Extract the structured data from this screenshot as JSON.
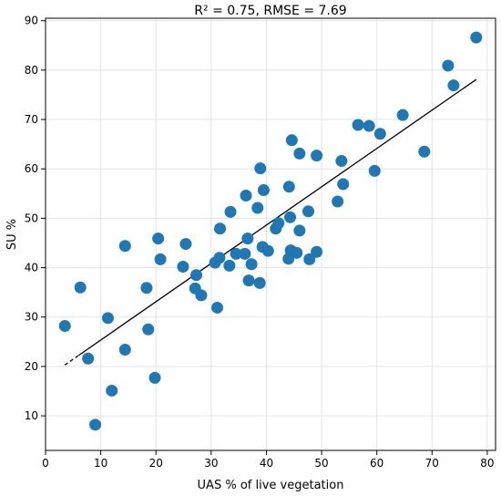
{
  "chart_data": {
    "type": "scatter",
    "title": "R² = 0.75, RMSE = 7.69",
    "xlabel": "UAS % of live vegetation",
    "ylabel": "SU %",
    "xlim": [
      0,
      81.5
    ],
    "ylim": [
      3,
      90.5
    ],
    "xticks": [
      0,
      10,
      20,
      30,
      40,
      50,
      60,
      70,
      80
    ],
    "yticks": [
      10,
      20,
      30,
      40,
      50,
      60,
      70,
      80,
      90
    ],
    "grid": true,
    "point_color": "#1f77b4",
    "line_color": "#000000",
    "points": [
      {
        "x": 3.5,
        "y": 28.2
      },
      {
        "x": 6.3,
        "y": 36.0
      },
      {
        "x": 7.7,
        "y": 21.6
      },
      {
        "x": 9.0,
        "y": 8.2
      },
      {
        "x": 11.3,
        "y": 29.8
      },
      {
        "x": 12.0,
        "y": 15.1
      },
      {
        "x": 14.4,
        "y": 44.4
      },
      {
        "x": 14.4,
        "y": 23.4
      },
      {
        "x": 18.3,
        "y": 35.9
      },
      {
        "x": 18.6,
        "y": 27.5
      },
      {
        "x": 19.8,
        "y": 17.7
      },
      {
        "x": 20.4,
        "y": 45.9
      },
      {
        "x": 20.8,
        "y": 41.7
      },
      {
        "x": 24.9,
        "y": 40.2
      },
      {
        "x": 25.4,
        "y": 44.8
      },
      {
        "x": 27.1,
        "y": 35.8
      },
      {
        "x": 27.3,
        "y": 38.5
      },
      {
        "x": 28.2,
        "y": 34.4
      },
      {
        "x": 30.7,
        "y": 41.0
      },
      {
        "x": 31.1,
        "y": 31.9
      },
      {
        "x": 31.5,
        "y": 42.0
      },
      {
        "x": 31.6,
        "y": 47.9
      },
      {
        "x": 33.3,
        "y": 40.4
      },
      {
        "x": 33.5,
        "y": 51.3
      },
      {
        "x": 34.5,
        "y": 42.8
      },
      {
        "x": 36.1,
        "y": 42.8
      },
      {
        "x": 36.3,
        "y": 54.6
      },
      {
        "x": 36.6,
        "y": 45.9
      },
      {
        "x": 36.8,
        "y": 37.4
      },
      {
        "x": 37.3,
        "y": 40.7
      },
      {
        "x": 38.4,
        "y": 52.1
      },
      {
        "x": 38.8,
        "y": 36.9
      },
      {
        "x": 38.9,
        "y": 60.1
      },
      {
        "x": 39.3,
        "y": 44.2
      },
      {
        "x": 39.5,
        "y": 55.7
      },
      {
        "x": 40.3,
        "y": 43.4
      },
      {
        "x": 41.7,
        "y": 47.9
      },
      {
        "x": 42.2,
        "y": 49.0
      },
      {
        "x": 44.0,
        "y": 41.8
      },
      {
        "x": 44.1,
        "y": 56.4
      },
      {
        "x": 44.3,
        "y": 50.2
      },
      {
        "x": 44.4,
        "y": 43.5
      },
      {
        "x": 44.6,
        "y": 65.8
      },
      {
        "x": 45.5,
        "y": 43.0
      },
      {
        "x": 46.0,
        "y": 63.1
      },
      {
        "x": 46.0,
        "y": 47.5
      },
      {
        "x": 47.6,
        "y": 51.4
      },
      {
        "x": 47.8,
        "y": 41.7
      },
      {
        "x": 49.1,
        "y": 62.7
      },
      {
        "x": 49.1,
        "y": 43.2
      },
      {
        "x": 52.9,
        "y": 53.4
      },
      {
        "x": 53.6,
        "y": 61.6
      },
      {
        "x": 53.9,
        "y": 56.9
      },
      {
        "x": 56.6,
        "y": 68.9
      },
      {
        "x": 58.6,
        "y": 68.7
      },
      {
        "x": 59.6,
        "y": 59.6
      },
      {
        "x": 60.6,
        "y": 67.1
      },
      {
        "x": 64.7,
        "y": 70.9
      },
      {
        "x": 68.6,
        "y": 63.5
      },
      {
        "x": 72.9,
        "y": 80.9
      },
      {
        "x": 73.9,
        "y": 76.9
      },
      {
        "x": 78.0,
        "y": 86.6
      }
    ],
    "fit_line": {
      "x": [
        3.5,
        78.0
      ],
      "y": [
        20.3,
        78.1
      ],
      "dashed_until_x": 6.0
    }
  }
}
